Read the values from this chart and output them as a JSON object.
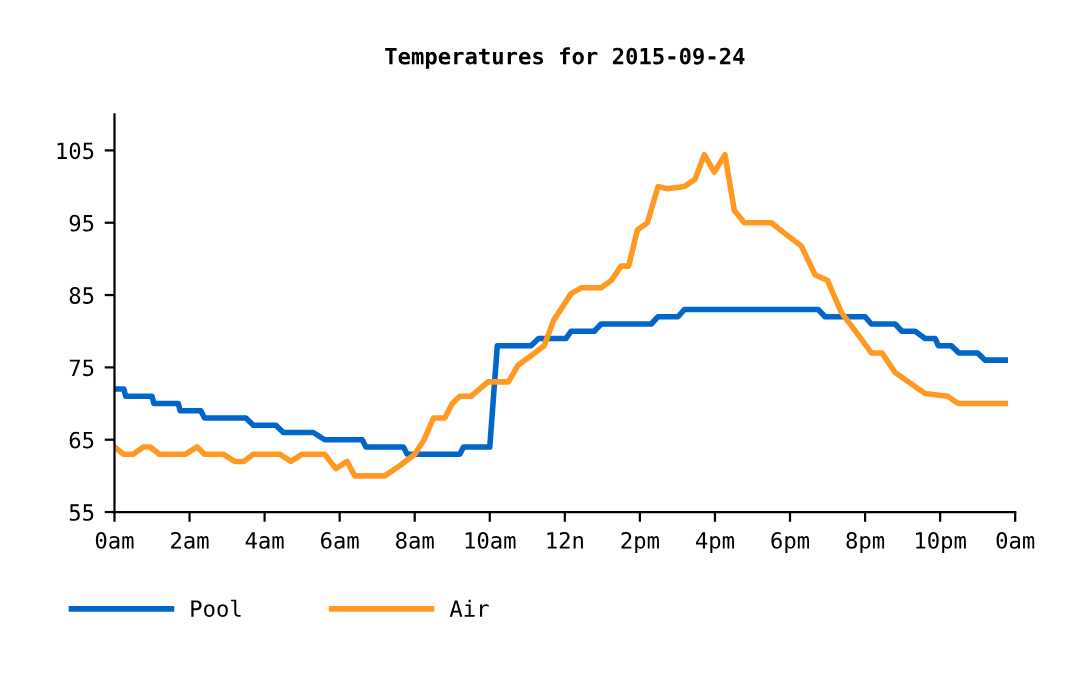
{
  "chart_data": {
    "type": "line",
    "title": "Temperatures for 2015-09-24",
    "xlim": [
      "2015-09-24T00:00",
      "2015-09-25T00:00"
    ],
    "ylim": [
      55,
      110
    ],
    "xticks": [
      {
        "value": "2015-09-24T00:00",
        "label": "0am"
      },
      {
        "value": "2015-09-24T02:00",
        "label": "2am"
      },
      {
        "value": "2015-09-24T04:00",
        "label": "4am"
      },
      {
        "value": "2015-09-24T06:00",
        "label": "6am"
      },
      {
        "value": "2015-09-24T08:00",
        "label": "8am"
      },
      {
        "value": "2015-09-24T10:00",
        "label": "10am"
      },
      {
        "value": "2015-09-24T12:00",
        "label": "12n"
      },
      {
        "value": "2015-09-24T14:00",
        "label": "2pm"
      },
      {
        "value": "2015-09-24T16:00",
        "label": "4pm"
      },
      {
        "value": "2015-09-24T18:00",
        "label": "6pm"
      },
      {
        "value": "2015-09-24T20:00",
        "label": "8pm"
      },
      {
        "value": "2015-09-24T22:00",
        "label": "10pm"
      },
      {
        "value": "2015-09-25T00:00",
        "label": "0am"
      }
    ],
    "yticks": [
      55,
      65,
      75,
      85,
      95,
      105
    ],
    "grid": false,
    "legend": "bottom",
    "marker": "none",
    "line_style": "solid",
    "series": [
      {
        "name": "Pool",
        "color": "#0066cc",
        "x": [
          "2015-09-24T00:00",
          "2015-09-24T00:15",
          "2015-09-24T00:18",
          "2015-09-24T01:00",
          "2015-09-24T01:03",
          "2015-09-24T01:42",
          "2015-09-24T01:45",
          "2015-09-24T02:18",
          "2015-09-24T02:24",
          "2015-09-24T03:30",
          "2015-09-24T03:42",
          "2015-09-24T04:18",
          "2015-09-24T04:30",
          "2015-09-24T05:18",
          "2015-09-24T05:36",
          "2015-09-24T06:36",
          "2015-09-24T06:42",
          "2015-09-24T07:42",
          "2015-09-24T07:48",
          "2015-09-24T09:12",
          "2015-09-24T09:18",
          "2015-09-24T10:00",
          "2015-09-24T10:12",
          "2015-09-24T11:06",
          "2015-09-24T11:18",
          "2015-09-24T12:02",
          "2015-09-24T12:10",
          "2015-09-24T12:47",
          "2015-09-24T12:58",
          "2015-09-24T14:18",
          "2015-09-24T14:29",
          "2015-09-24T15:01",
          "2015-09-24T15:11",
          "2015-09-24T18:45",
          "2015-09-24T18:56",
          "2015-09-24T20:00",
          "2015-09-24T20:10",
          "2015-09-24T20:48",
          "2015-09-24T20:59",
          "2015-09-24T21:20",
          "2015-09-24T21:36",
          "2015-09-24T21:52",
          "2015-09-24T21:57",
          "2015-09-24T22:18",
          "2015-09-24T22:30",
          "2015-09-24T23:00",
          "2015-09-24T23:12",
          "2015-09-24T23:44"
        ],
        "values": [
          72,
          72,
          71,
          71,
          70,
          70,
          69,
          69,
          68,
          68,
          67,
          67,
          66,
          66,
          65,
          65,
          64,
          64,
          63,
          63,
          64,
          64,
          78,
          78,
          79,
          79,
          80,
          80,
          81,
          81,
          82,
          82,
          83,
          83,
          82,
          82,
          81,
          81,
          80,
          80,
          79,
          79,
          78,
          78,
          77,
          77,
          76,
          76
        ]
      },
      {
        "name": "Air",
        "color": "#ff9922",
        "x": [
          "2015-09-24T00:00",
          "2015-09-24T00:14",
          "2015-09-24T00:30",
          "2015-09-24T00:46",
          "2015-09-24T00:57",
          "2015-09-24T01:12",
          "2015-09-24T01:54",
          "2015-09-24T02:12",
          "2015-09-24T02:24",
          "2015-09-24T02:54",
          "2015-09-24T03:12",
          "2015-09-24T03:27",
          "2015-09-24T03:42",
          "2015-09-24T04:24",
          "2015-09-24T04:42",
          "2015-09-24T05:00",
          "2015-09-24T05:36",
          "2015-09-24T05:54",
          "2015-09-24T06:12",
          "2015-09-24T06:24",
          "2015-09-24T07:12",
          "2015-09-24T07:36",
          "2015-09-24T08:00",
          "2015-09-24T08:15",
          "2015-09-24T08:30",
          "2015-09-24T08:48",
          "2015-09-24T09:00",
          "2015-09-24T09:12",
          "2015-09-24T09:30",
          "2015-09-24T09:57",
          "2015-09-24T10:30",
          "2015-09-24T10:45",
          "2015-09-24T11:12",
          "2015-09-24T11:27",
          "2015-09-24T11:42",
          "2015-09-24T12:10",
          "2015-09-24T12:26",
          "2015-09-24T12:58",
          "2015-09-24T13:14",
          "2015-09-24T13:30",
          "2015-09-24T13:42",
          "2015-09-24T13:56",
          "2015-09-24T14:12",
          "2015-09-24T14:29",
          "2015-09-24T14:44",
          "2015-09-24T15:11",
          "2015-09-24T15:28",
          "2015-09-24T15:43",
          "2015-09-24T15:59",
          "2015-09-24T16:16",
          "2015-09-24T16:31",
          "2015-09-24T16:47",
          "2015-09-24T17:30",
          "2015-09-24T17:52",
          "2015-09-24T18:18",
          "2015-09-24T18:40",
          "2015-09-24T19:00",
          "2015-09-24T19:22",
          "2015-09-24T19:49",
          "2015-09-24T20:10",
          "2015-09-24T20:27",
          "2015-09-24T20:48",
          "2015-09-24T21:09",
          "2015-09-24T21:36",
          "2015-09-24T22:12",
          "2015-09-24T22:29",
          "2015-09-24T23:44"
        ],
        "values": [
          64,
          63,
          63,
          64,
          64,
          63,
          63,
          64,
          63,
          63,
          62,
          62,
          63,
          63,
          62,
          63,
          63,
          61,
          62,
          60,
          60,
          61.4,
          63,
          65,
          68,
          68,
          70,
          71,
          71,
          73,
          73,
          75.3,
          77,
          78,
          81.5,
          85.2,
          86,
          86,
          87,
          89,
          89,
          94,
          95,
          100,
          99.7,
          100,
          101,
          104.4,
          102,
          104.4,
          96.7,
          95,
          95,
          93.5,
          91.8,
          87.8,
          87,
          82.6,
          79.5,
          77,
          77,
          74.3,
          73,
          71.4,
          71,
          70,
          70
        ]
      }
    ]
  }
}
